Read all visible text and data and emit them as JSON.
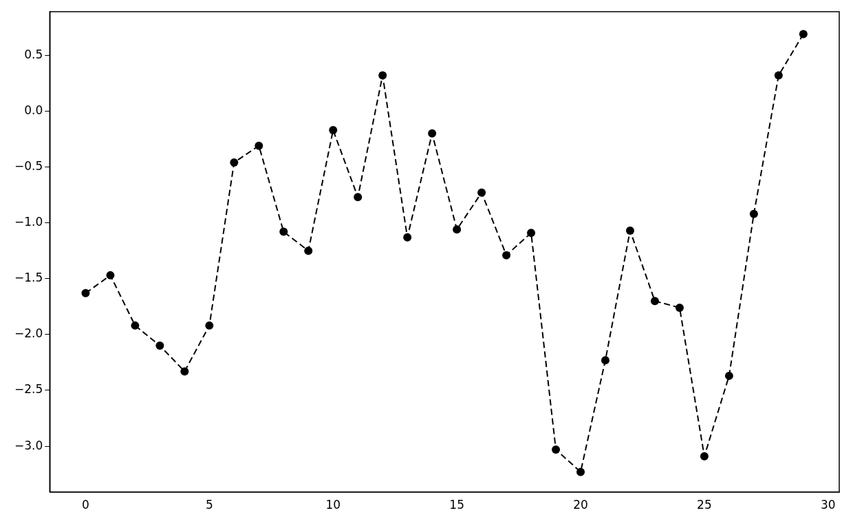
{
  "chart_data": {
    "type": "line",
    "x": [
      0,
      1,
      2,
      3,
      4,
      5,
      6,
      7,
      8,
      9,
      10,
      11,
      12,
      13,
      14,
      15,
      16,
      17,
      18,
      19,
      20,
      21,
      22,
      23,
      24,
      25,
      26,
      27,
      28,
      29
    ],
    "series": [
      {
        "color": "#000000",
        "values": [
          -1.63,
          -1.47,
          -1.92,
          -2.1,
          -2.33,
          -1.92,
          -0.46,
          -0.31,
          -1.08,
          -1.25,
          -0.17,
          -0.77,
          0.32,
          -1.13,
          -0.2,
          -1.06,
          -0.73,
          -1.29,
          -1.09,
          -3.03,
          -3.23,
          -2.23,
          -1.07,
          -1.7,
          -1.76,
          -3.09,
          -2.37,
          -0.92,
          0.32,
          0.69
        ]
      }
    ],
    "xlim": [
      -1.45,
      30.45
    ],
    "xticks": [
      0,
      5,
      10,
      15,
      20,
      25,
      30
    ],
    "ylim": [
      -3.41,
      0.89
    ],
    "yticks": [
      {
        "value": 0.5,
        "label": "0.5"
      },
      {
        "value": 0,
        "label": "0.0"
      },
      {
        "value": -0.5,
        "label": "−0.5"
      },
      {
        "value": -1,
        "label": "−1.0"
      },
      {
        "value": -1.5,
        "label": "−1.5"
      },
      {
        "value": -2,
        "label": "−2.0"
      },
      {
        "value": -2.5,
        "label": "−2.5"
      },
      {
        "value": -3,
        "label": "−3.0"
      }
    ],
    "marker": "circle",
    "line_style": "dashed",
    "grid": false,
    "legend": false
  }
}
